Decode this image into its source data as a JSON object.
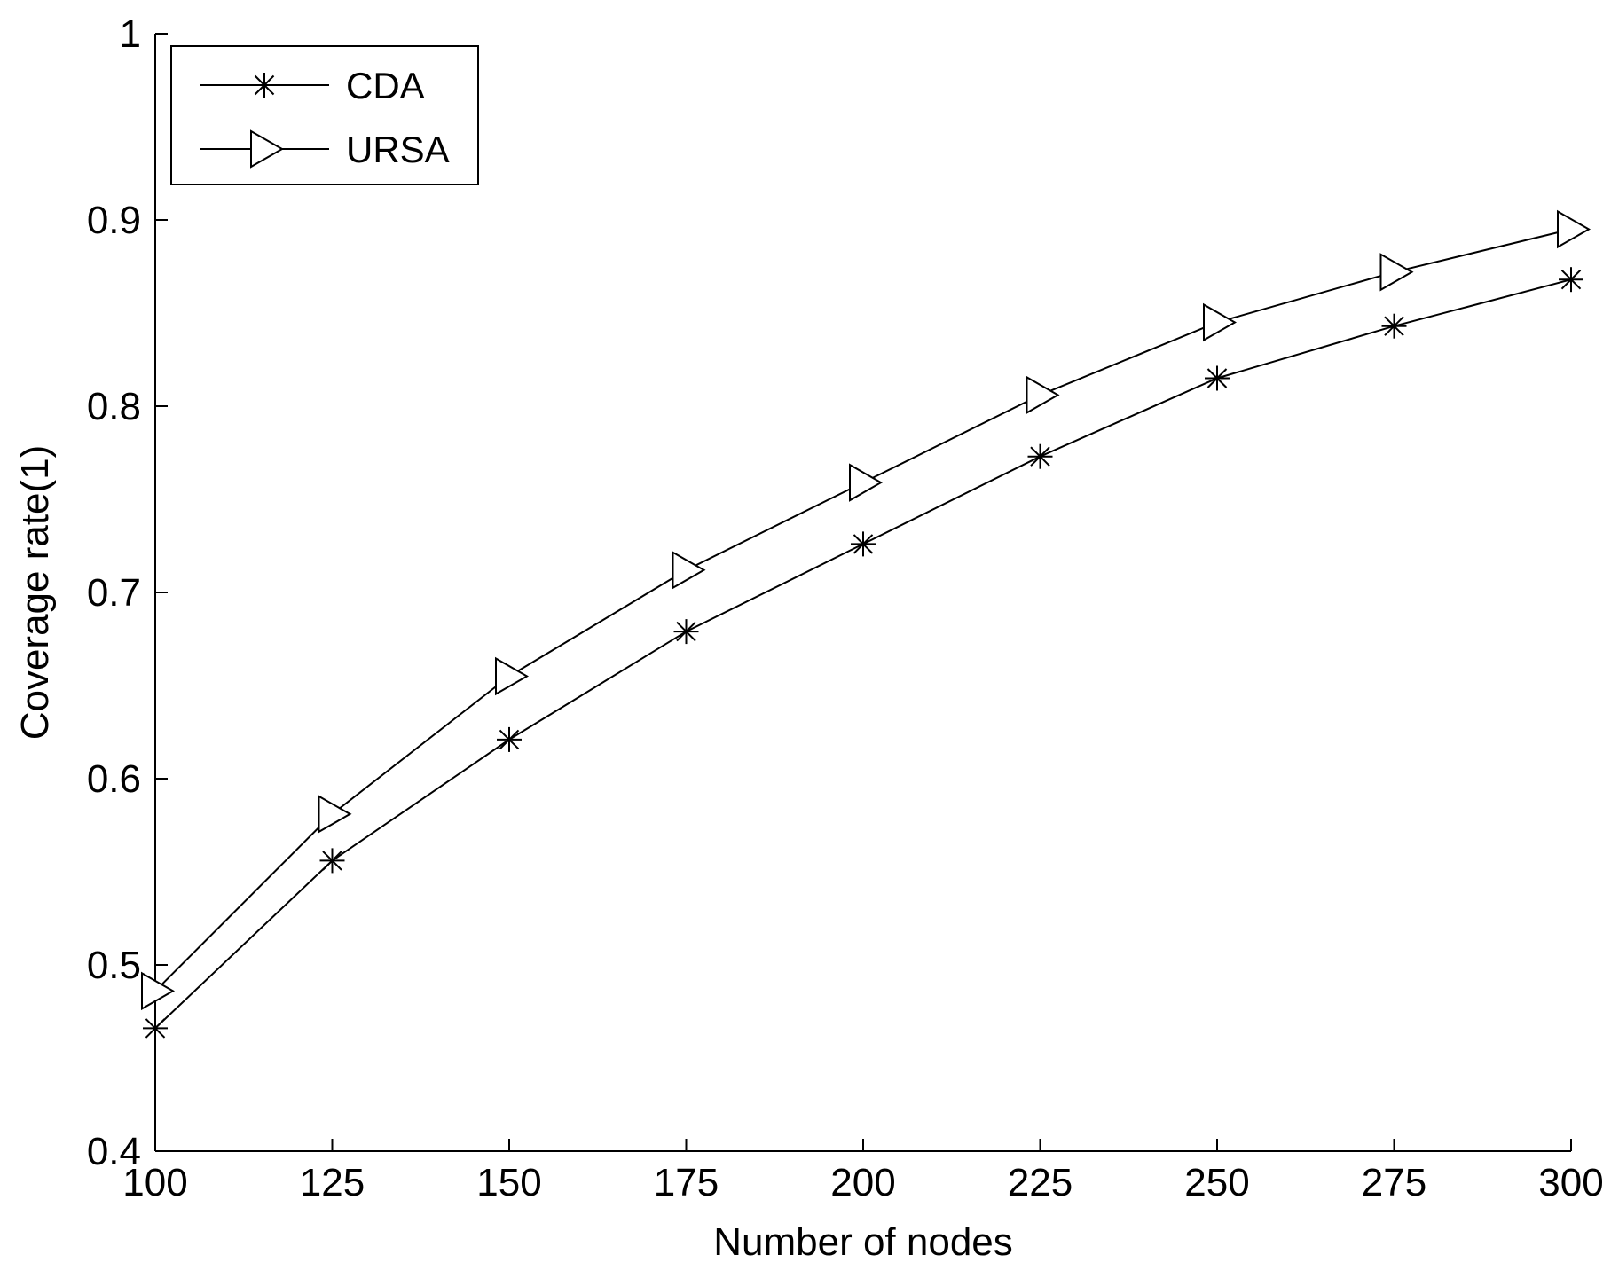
{
  "chart_data": {
    "type": "line",
    "title": "",
    "xlabel": "Number of nodes",
    "ylabel": "Coverage rate(1)",
    "x": [
      100,
      125,
      150,
      175,
      200,
      225,
      250,
      275,
      300
    ],
    "xlim": [
      100,
      300
    ],
    "ylim": [
      0.4,
      1
    ],
    "xticks": [
      "100",
      "125",
      "150",
      "175",
      "200",
      "225",
      "250",
      "275",
      "300"
    ],
    "yticks": [
      "0.4",
      "0.5",
      "0.6",
      "0.7",
      "0.8",
      "0.9",
      "1"
    ],
    "grid": false,
    "legend_position": "top-left",
    "series": [
      {
        "name": "CDA",
        "marker": "asterisk",
        "color": "#000000",
        "values": [
          0.466,
          0.556,
          0.621,
          0.679,
          0.726,
          0.773,
          0.815,
          0.843,
          0.868
        ]
      },
      {
        "name": "URSA",
        "marker": "triangle-right",
        "color": "#000000",
        "values": [
          0.486,
          0.581,
          0.655,
          0.712,
          0.759,
          0.806,
          0.845,
          0.872,
          0.895
        ]
      }
    ]
  }
}
